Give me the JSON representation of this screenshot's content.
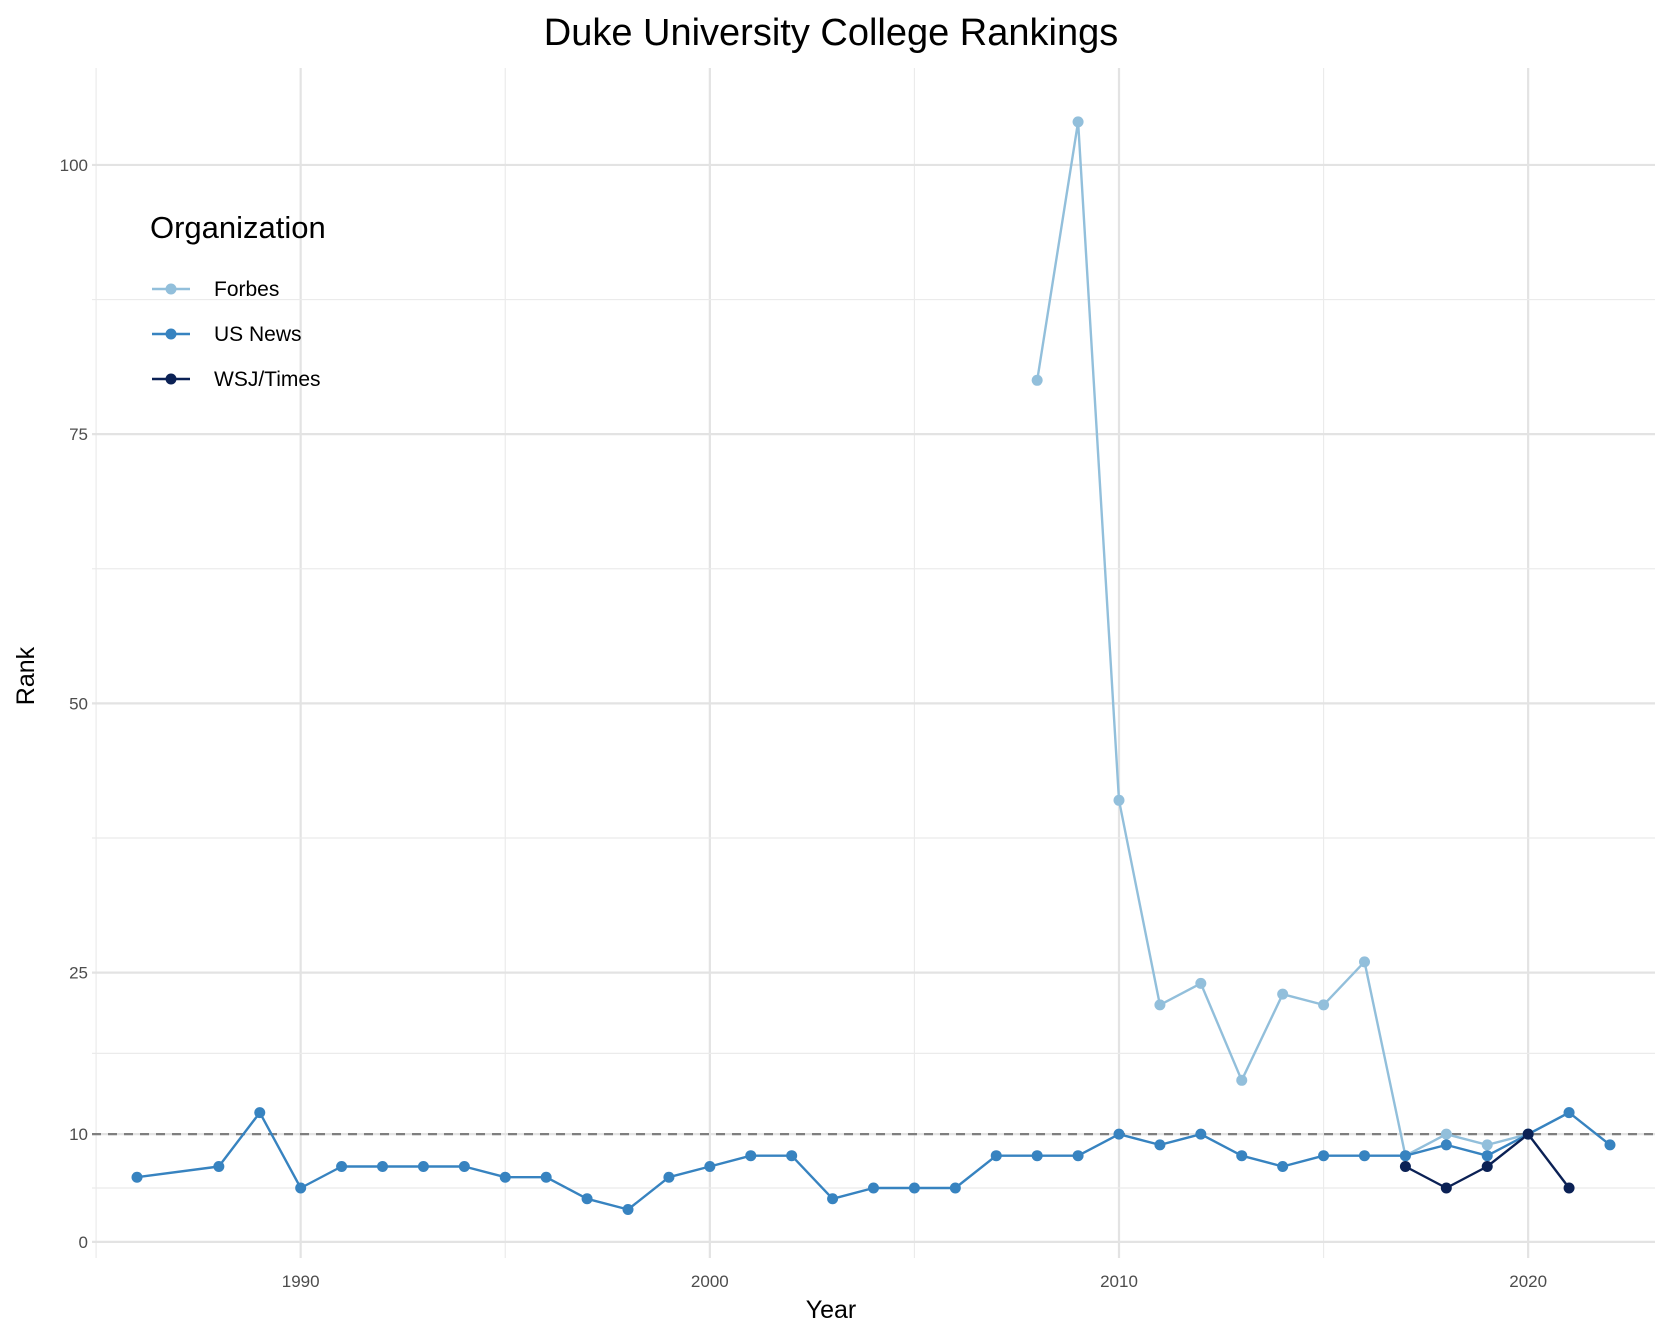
{
  "chart_data": {
    "type": "line",
    "title": "Duke University College Rankings",
    "xlabel": "Year",
    "ylabel": "Rank",
    "xlim": [
      1984.9,
      2023.1
    ],
    "ylim": [
      -1.5,
      109
    ],
    "x_ticks": [
      1990,
      2000,
      2010,
      2020
    ],
    "y_ticks": [
      0,
      10,
      25,
      50,
      75,
      100
    ],
    "reference_line": 10,
    "grid": true,
    "legend": {
      "title": "Organization",
      "position": "top-left"
    },
    "series": [
      {
        "name": "Forbes",
        "color": "#92bfdb",
        "x": [
          2008,
          2009,
          2010,
          2011,
          2012,
          2013,
          2014,
          2015,
          2016,
          2017,
          2018,
          2019,
          2020,
          2021
        ],
        "y": [
          80,
          104,
          41,
          22,
          24,
          15,
          23,
          22,
          26,
          8,
          10,
          9,
          10,
          12
        ]
      },
      {
        "name": "US News",
        "color": "#3783c0",
        "x": [
          1986,
          1988,
          1989,
          1990,
          1991,
          1992,
          1993,
          1994,
          1995,
          1996,
          1997,
          1998,
          1999,
          2000,
          2001,
          2002,
          2003,
          2004,
          2005,
          2006,
          2007,
          2008,
          2009,
          2010,
          2011,
          2012,
          2013,
          2014,
          2015,
          2016,
          2017,
          2018,
          2019,
          2020,
          2021,
          2022
        ],
        "y": [
          6,
          7,
          12,
          5,
          7,
          7,
          7,
          7,
          6,
          6,
          4,
          3,
          6,
          7,
          8,
          8,
          4,
          5,
          5,
          5,
          8,
          8,
          8,
          10,
          9,
          10,
          8,
          7,
          8,
          8,
          8,
          9,
          8,
          10,
          12,
          9
        ]
      },
      {
        "name": "WSJ/Times",
        "color": "#0b2155",
        "x": [
          2017,
          2018,
          2019,
          2020,
          2021
        ],
        "y": [
          7,
          5,
          7,
          10,
          5
        ]
      }
    ]
  }
}
